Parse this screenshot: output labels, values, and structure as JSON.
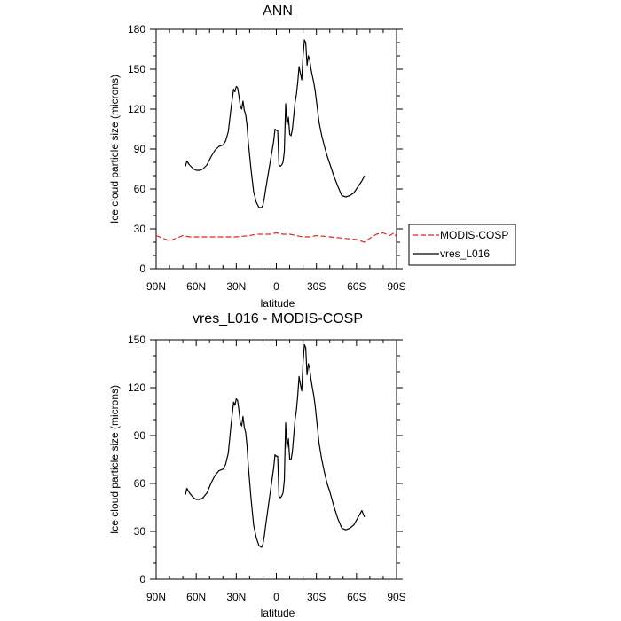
{
  "chart_data": [
    {
      "type": "line",
      "title": "ANN",
      "xlabel": "latitude",
      "ylabel": "Ice cloud particle size (microns)",
      "xlim": [
        -90,
        90
      ],
      "ylim": [
        0,
        180
      ],
      "x_ticks": [
        -90,
        -60,
        -30,
        0,
        30,
        60,
        90
      ],
      "x_tick_labels": [
        "90N",
        "60N",
        "30N",
        "0",
        "30S",
        "60S",
        "90S"
      ],
      "y_ticks": [
        0,
        30,
        60,
        90,
        120,
        150,
        180
      ],
      "y_tick_labels": [
        "0",
        "30",
        "60",
        "90",
        "120",
        "150",
        "180"
      ],
      "legend": {
        "position": "right",
        "entries": [
          {
            "name": "MODIS-COSP",
            "color": "#e8261c",
            "dash": true
          },
          {
            "name": "vres_L016",
            "color": "#000000",
            "dash": false
          }
        ]
      },
      "series": [
        {
          "name": "MODIS-COSP",
          "color": "#e8261c",
          "dash": true,
          "x": [
            -90,
            -85,
            -80,
            -75,
            -70,
            -65,
            -60,
            -50,
            -40,
            -30,
            -20,
            -15,
            -10,
            -5,
            0,
            5,
            10,
            15,
            20,
            25,
            30,
            40,
            50,
            60,
            66,
            70,
            75,
            80,
            85,
            88,
            90
          ],
          "y": [
            25,
            23,
            21,
            23,
            25,
            24,
            24,
            24,
            24,
            24,
            25,
            26,
            26,
            26,
            27,
            26,
            26,
            25,
            24,
            24,
            25,
            24,
            23,
            22,
            20,
            23,
            26,
            27,
            25,
            27,
            24
          ]
        },
        {
          "name": "vres_L016",
          "color": "#000000",
          "dash": false,
          "x": [
            -68,
            -67,
            -65,
            -62,
            -60,
            -57,
            -55,
            -52,
            -49,
            -46,
            -43,
            -40,
            -38,
            -36,
            -34,
            -32,
            -31,
            -30,
            -29,
            -28,
            -27,
            -26,
            -25,
            -24,
            -23,
            -22,
            -21,
            -19,
            -17,
            -15,
            -13,
            -11,
            -10,
            -9,
            -8,
            -6,
            -4,
            -2,
            -1,
            0,
            1,
            2,
            3,
            4,
            5,
            6,
            7,
            8,
            9,
            10,
            11,
            12,
            13,
            14,
            15,
            16,
            17,
            18,
            19,
            20,
            21,
            22,
            23,
            24,
            25,
            26,
            27,
            28,
            29,
            30,
            31,
            32,
            34,
            36,
            38,
            40,
            43,
            46,
            49,
            52,
            55,
            58,
            60,
            62,
            64,
            66
          ],
          "y": [
            77,
            81,
            78,
            75,
            74,
            74,
            75,
            78,
            84,
            89,
            92,
            93,
            96,
            103,
            120,
            135,
            133,
            137,
            136,
            130,
            122,
            120,
            126,
            119,
            116,
            108,
            95,
            75,
            58,
            50,
            46,
            46,
            48,
            53,
            60,
            72,
            84,
            96,
            105,
            104,
            104,
            78,
            77,
            78,
            80,
            88,
            124,
            108,
            114,
            101,
            100,
            105,
            115,
            125,
            131,
            140,
            152,
            147,
            142,
            160,
            172,
            170,
            153,
            160,
            157,
            150,
            145,
            140,
            134,
            126,
            118,
            110,
            100,
            92,
            85,
            79,
            70,
            62,
            55,
            54,
            55,
            57,
            60,
            63,
            66,
            70
          ]
        }
      ]
    },
    {
      "type": "line",
      "title": "vres_L016 - MODIS-COSP",
      "xlabel": "latitude",
      "ylabel": "Ice cloud particle size (microns)",
      "xlim": [
        -90,
        90
      ],
      "ylim": [
        0,
        150
      ],
      "x_ticks": [
        -90,
        -60,
        -30,
        0,
        30,
        60,
        90
      ],
      "x_tick_labels": [
        "90N",
        "60N",
        "30N",
        "0",
        "30S",
        "60S",
        "90S"
      ],
      "y_ticks": [
        0,
        30,
        60,
        90,
        120,
        150
      ],
      "y_tick_labels": [
        "0",
        "30",
        "60",
        "90",
        "120",
        "150"
      ],
      "series": [
        {
          "name": "vres_L016 - MODIS-COSP",
          "color": "#000000",
          "dash": false,
          "x": [
            -68,
            -67,
            -65,
            -62,
            -60,
            -57,
            -55,
            -52,
            -49,
            -46,
            -43,
            -40,
            -38,
            -36,
            -34,
            -32,
            -31,
            -30,
            -29,
            -28,
            -27,
            -26,
            -25,
            -24,
            -23,
            -22,
            -21,
            -19,
            -17,
            -15,
            -13,
            -11,
            -10,
            -9,
            -8,
            -6,
            -4,
            -2,
            -1,
            0,
            1,
            2,
            3,
            4,
            5,
            6,
            7,
            8,
            9,
            10,
            11,
            12,
            13,
            14,
            15,
            16,
            17,
            18,
            19,
            20,
            21,
            22,
            23,
            24,
            25,
            26,
            27,
            28,
            29,
            30,
            31,
            32,
            34,
            36,
            38,
            40,
            43,
            46,
            49,
            52,
            55,
            58,
            60,
            62,
            64,
            66
          ],
          "y": [
            53,
            57,
            54,
            51,
            50,
            50,
            51,
            54,
            60,
            65,
            68,
            69,
            72,
            79,
            96,
            111,
            109,
            113,
            112,
            106,
            98,
            96,
            102,
            95,
            92,
            84,
            71,
            51,
            34,
            26,
            21,
            20,
            22,
            27,
            34,
            46,
            58,
            70,
            78,
            77,
            77,
            52,
            51,
            52,
            54,
            62,
            98,
            82,
            88,
            75,
            75,
            80,
            90,
            100,
            106,
            115,
            127,
            122,
            118,
            136,
            147,
            145,
            128,
            135,
            132,
            125,
            120,
            115,
            109,
            101,
            93,
            85,
            75,
            67,
            60,
            55,
            46,
            38,
            32,
            31,
            32,
            34,
            37,
            40,
            43,
            39
          ]
        }
      ]
    }
  ]
}
